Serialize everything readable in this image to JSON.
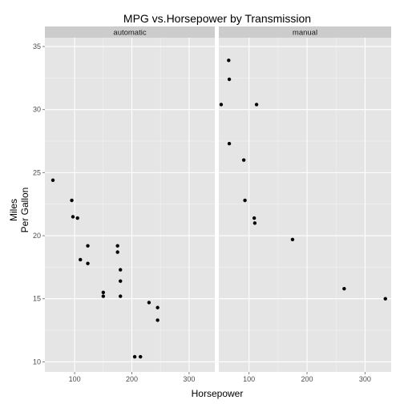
{
  "chart_data": {
    "type": "scatter",
    "title": "MPG vs.Horsepower by Transmission",
    "xlabel": "Horsepower",
    "ylabel_lines": [
      "Miles",
      "Per Gallon"
    ],
    "xlim": [
      48,
      345
    ],
    "ylim": [
      9.2,
      35.7
    ],
    "xticks": [
      100,
      200,
      300
    ],
    "yticks": [
      10,
      15,
      20,
      25,
      30,
      35
    ],
    "grid": true,
    "facet_strip_labels": [
      "automatic",
      "manual"
    ],
    "colors": {
      "panel_bg": "#e5e5e5",
      "strip_bg": "#cccccc",
      "grid_major": "#ffffff",
      "grid_minor": "#f2f2f2",
      "point": "#000000"
    },
    "panels": [
      {
        "label": "automatic",
        "points": [
          {
            "x": 62,
            "y": 24.4
          },
          {
            "x": 95,
            "y": 22.8
          },
          {
            "x": 97,
            "y": 21.5
          },
          {
            "x": 105,
            "y": 21.4
          },
          {
            "x": 110,
            "y": 18.1
          },
          {
            "x": 123,
            "y": 19.2
          },
          {
            "x": 123,
            "y": 17.8
          },
          {
            "x": 150,
            "y": 15.5
          },
          {
            "x": 150,
            "y": 15.2
          },
          {
            "x": 175,
            "y": 19.2
          },
          {
            "x": 175,
            "y": 18.7
          },
          {
            "x": 180,
            "y": 17.3
          },
          {
            "x": 180,
            "y": 16.4
          },
          {
            "x": 180,
            "y": 15.2
          },
          {
            "x": 205,
            "y": 10.4
          },
          {
            "x": 215,
            "y": 10.4
          },
          {
            "x": 230,
            "y": 14.7
          },
          {
            "x": 245,
            "y": 14.3
          },
          {
            "x": 245,
            "y": 13.3
          }
        ]
      },
      {
        "label": "manual",
        "points": [
          {
            "x": 52,
            "y": 30.4
          },
          {
            "x": 65,
            "y": 33.9
          },
          {
            "x": 66,
            "y": 32.4
          },
          {
            "x": 66,
            "y": 27.3
          },
          {
            "x": 91,
            "y": 26.0
          },
          {
            "x": 93,
            "y": 22.8
          },
          {
            "x": 109,
            "y": 21.4
          },
          {
            "x": 110,
            "y": 21.0
          },
          {
            "x": 113,
            "y": 30.4
          },
          {
            "x": 175,
            "y": 19.7
          },
          {
            "x": 264,
            "y": 15.8
          },
          {
            "x": 335,
            "y": 15.0
          }
        ]
      }
    ]
  }
}
